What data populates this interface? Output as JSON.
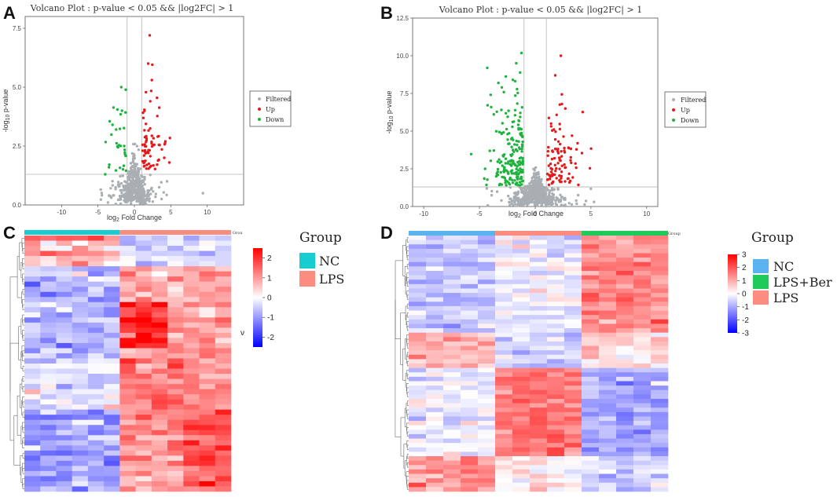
{
  "panel_labels": [
    "A",
    "B",
    "C",
    "D"
  ],
  "colors": {
    "filtered": "#a9aeb2",
    "up": "#e41a1c",
    "down": "#1fb23f",
    "nc_c": "#18cdd2",
    "lps_c": "#fa8c80",
    "nc_d": "#5ab3ef",
    "lps_ber_d": "#1fc95a",
    "lps_d": "#fa8c80",
    "heat_low": "#0000ff",
    "heat_mid": "#ffffff",
    "heat_high": "#ff0000"
  },
  "chart_data": [
    {
      "panel": "A",
      "type": "scatter",
      "title": "Volcano Plot : p-value < 0.05 && |log2FC| > 1",
      "xlabel_pre": "log",
      "xlabel_sub": "2",
      "xlabel_post": " Fold Change",
      "ylabel_pre": "-log",
      "ylabel_sub": "10",
      "ylabel_post": " p-value",
      "xlim": [
        -15,
        15
      ],
      "ylim": [
        0,
        8
      ],
      "xticks": [
        -10,
        -5,
        0,
        5,
        10
      ],
      "xtick_labels": [
        "-10",
        "-5",
        "0",
        "5",
        "10"
      ],
      "yticks": [
        0,
        2.5,
        5,
        7.5
      ],
      "ytick_labels": [
        "0.0",
        "2.5",
        "5.0",
        "7.5"
      ],
      "vlines": [
        -1,
        1
      ],
      "hline": 1.3,
      "legend": [
        "Filtered",
        "Up",
        "Down"
      ],
      "seed": 11,
      "n_filtered": 520,
      "n_up": 70,
      "n_down": 26,
      "up_points": [
        [
          2.1,
          7.2
        ],
        [
          1.9,
          6.0
        ],
        [
          2.4,
          5.3
        ],
        [
          3.2,
          2.9
        ],
        [
          4.1,
          2.0
        ],
        [
          4.8,
          1.8
        ]
      ],
      "down_points": [
        [
          -1.8,
          5.0
        ],
        [
          -1.7,
          4.0
        ],
        [
          -3.0,
          3.4
        ],
        [
          -4.0,
          1.3
        ],
        [
          -3.5,
          1.6
        ],
        [
          -2.5,
          3.2
        ]
      ]
    },
    {
      "panel": "B",
      "type": "scatter",
      "title": "Volcano Plot : p-value < 0.05 && |log2FC| > 1",
      "xlabel_pre": "log",
      "xlabel_sub": "2",
      "xlabel_post": " Fold Change",
      "ylabel_pre": "-log",
      "ylabel_sub": "10",
      "ylabel_post": " p-value",
      "xlim": [
        -11,
        11
      ],
      "ylim": [
        0,
        12.5
      ],
      "xticks": [
        -10,
        -5,
        0,
        5,
        10
      ],
      "xtick_labels": [
        "-10",
        "-5",
        "0",
        "5",
        "10"
      ],
      "yticks": [
        0,
        2.5,
        5,
        7.5,
        10,
        12.5
      ],
      "ytick_labels": [
        "0.0",
        "2.5",
        "5.0",
        "7.5",
        "10.0",
        "12.5"
      ],
      "vlines": [
        -1,
        1
      ],
      "hline": 1.3,
      "legend": [
        "Filtered",
        "Up",
        "Down"
      ],
      "seed": 29,
      "n_filtered": 640,
      "n_up": 95,
      "n_down": 190,
      "up_points": [
        [
          2.3,
          10.0
        ],
        [
          1.8,
          8.7
        ],
        [
          2.4,
          6.8
        ],
        [
          2.7,
          6.5
        ],
        [
          3.3,
          4.7
        ],
        [
          3.8,
          4.2
        ]
      ],
      "down_points": [
        [
          -4.3,
          9.2
        ],
        [
          -1.7,
          9.5
        ],
        [
          -3.3,
          8.2
        ],
        [
          -3.0,
          7.9
        ],
        [
          -4.5,
          2.5
        ],
        [
          -2.0,
          8.4
        ]
      ]
    },
    {
      "panel": "C",
      "type": "heatmap",
      "rows": 50,
      "cols": 13,
      "seed": 7,
      "groups": [
        {
          "name": "NC",
          "count": 6
        },
        {
          "name": "LPS",
          "count": 7
        }
      ],
      "group_title": "Group",
      "group_bar_label": "Grou",
      "colorbar_ticks": [
        2,
        1,
        0,
        -1,
        -2
      ],
      "colorbar_labels": [
        "2",
        "1",
        "0",
        "-1",
        "-2"
      ],
      "value_range": [
        -2.5,
        2.5
      ],
      "stray_mark": "ν"
    },
    {
      "panel": "D",
      "type": "heatmap",
      "rows": 58,
      "cols": 15,
      "seed": 19,
      "groups": [
        {
          "name": "NC",
          "count": 5
        },
        {
          "name": "LPS",
          "count": 5
        },
        {
          "name": "LPS+Ber",
          "count": 5
        }
      ],
      "legend_order": [
        "NC",
        "LPS+Ber",
        "LPS"
      ],
      "group_title": "Group",
      "group_bar_label": "Group",
      "colorbar_ticks": [
        3,
        2,
        1,
        0,
        -1,
        -2,
        -3
      ],
      "colorbar_labels": [
        "3",
        "2",
        "1",
        "0",
        "-1",
        "-2",
        "-3"
      ],
      "value_range": [
        -3,
        3
      ]
    }
  ]
}
